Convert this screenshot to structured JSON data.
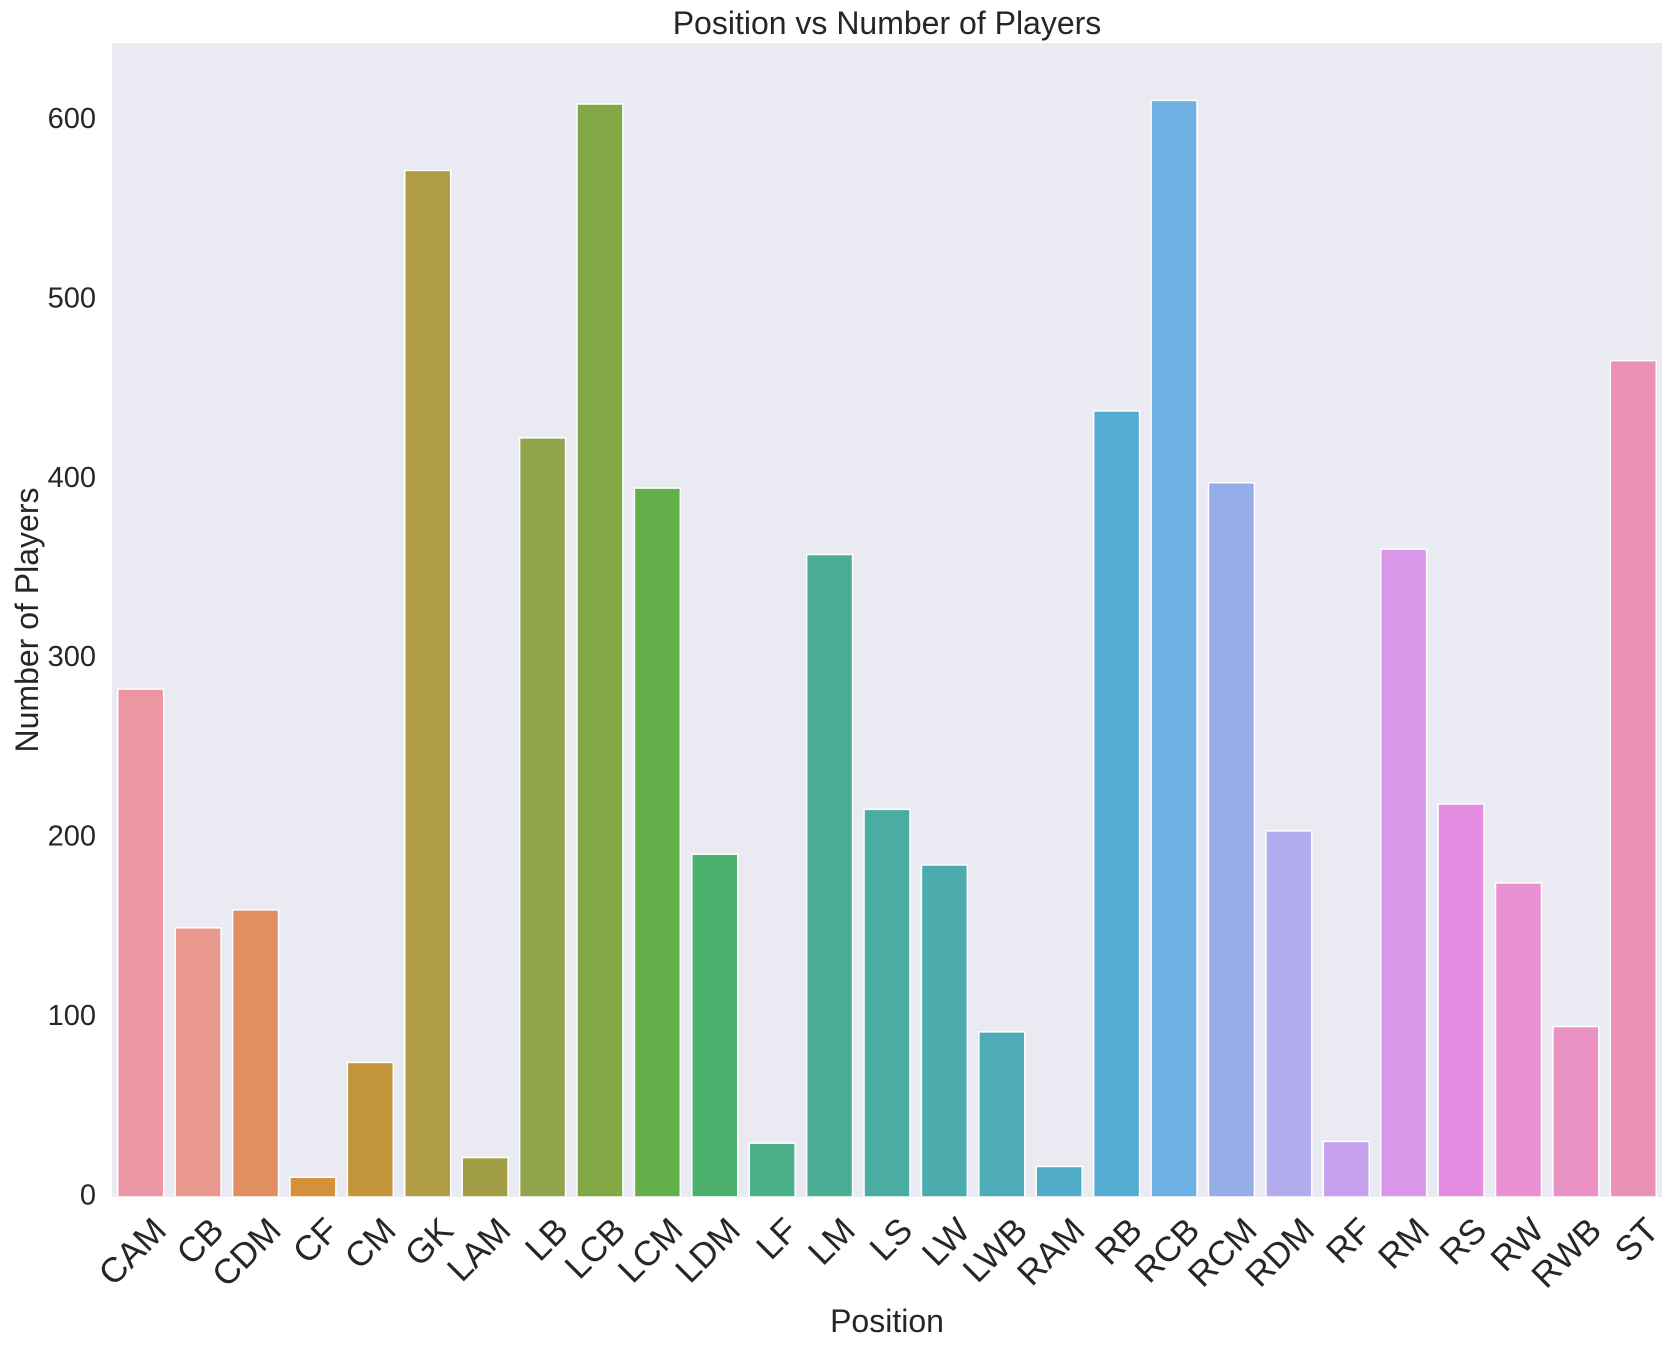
{
  "chart_data": {
    "type": "bar",
    "title": "Position vs Number of Players",
    "xlabel": "Position",
    "ylabel": "Number of Players",
    "categories": [
      "CAM",
      "CB",
      "CDM",
      "CF",
      "CM",
      "GK",
      "LAM",
      "LB",
      "LCB",
      "LCM",
      "LDM",
      "LF",
      "LM",
      "LS",
      "LW",
      "LWB",
      "RAM",
      "RB",
      "RCB",
      "RCM",
      "RDM",
      "RF",
      "RM",
      "RS",
      "RW",
      "RWB",
      "ST"
    ],
    "values": [
      283,
      150,
      160,
      11,
      75,
      572,
      22,
      423,
      609,
      395,
      191,
      30,
      358,
      216,
      185,
      92,
      17,
      438,
      611,
      398,
      204,
      31,
      361,
      219,
      175,
      95,
      466
    ],
    "colors": [
      "#ea96a3",
      "#e8988c",
      "#e28e63",
      "#d5913a",
      "#c4963b",
      "#b09b46",
      "#a29e46",
      "#92a44b",
      "#81a845",
      "#63b04a",
      "#4bb06b",
      "#4bb088",
      "#4aae96",
      "#4bada1",
      "#4cacad",
      "#4eacb8",
      "#51acc8",
      "#55acd2",
      "#6eb0e2",
      "#97ade9",
      "#b2abec",
      "#c6a2ee",
      "#db98ea",
      "#e58be2",
      "#ea91d3",
      "#ea92c4",
      "#ea92b4"
    ],
    "yticks": [
      0,
      100,
      200,
      300,
      400,
      500,
      600
    ],
    "ylim": [
      0,
      643
    ],
    "grid": false,
    "background": "#eaeaf2"
  }
}
